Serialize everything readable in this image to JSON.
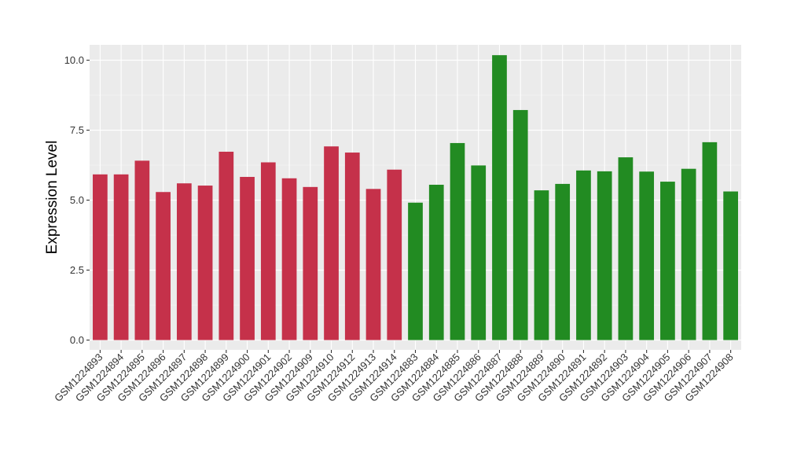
{
  "chart_data": {
    "type": "bar",
    "title": "",
    "xlabel": "",
    "ylabel": "Expression Level",
    "ylim": [
      -0.35,
      10.55
    ],
    "yticks": [
      0.0,
      2.5,
      5.0,
      7.5,
      10.0
    ],
    "ytick_labels": [
      "0.0",
      "2.5",
      "5.0",
      "7.5",
      "10.0"
    ],
    "grid": true,
    "legend": "none",
    "categories": [
      "GSM1224893",
      "GSM1224894",
      "GSM1224895",
      "GSM1224896",
      "GSM1224897",
      "GSM1224898",
      "GSM1224899",
      "GSM1224900",
      "GSM1224901",
      "GSM1224902",
      "GSM1224909",
      "GSM1224910",
      "GSM1224912",
      "GSM1224913",
      "GSM1224914",
      "GSM1224883",
      "GSM1224884",
      "GSM1224885",
      "GSM1224886",
      "GSM1224887",
      "GSM1224888",
      "GSM1224889",
      "GSM1224890",
      "GSM1224891",
      "GSM1224892",
      "GSM1224903",
      "GSM1224904",
      "GSM1224905",
      "GSM1224906",
      "GSM1224907",
      "GSM1224908"
    ],
    "values": [
      5.92,
      5.92,
      6.41,
      5.29,
      5.6,
      5.52,
      6.73,
      5.83,
      6.35,
      5.78,
      5.47,
      6.92,
      6.7,
      5.4,
      6.09,
      4.91,
      5.55,
      7.04,
      6.24,
      10.18,
      8.22,
      5.35,
      5.58,
      6.06,
      6.03,
      6.53,
      6.02,
      5.66,
      6.12,
      7.07,
      5.31
    ],
    "group_sizes": [
      15,
      16
    ],
    "colors": {
      "group1": "#C5314A",
      "group2": "#228B22",
      "panel": "#EBEBEB",
      "grid_major": "#FFFFFF",
      "grid_minor": "#F5F5F5"
    }
  }
}
